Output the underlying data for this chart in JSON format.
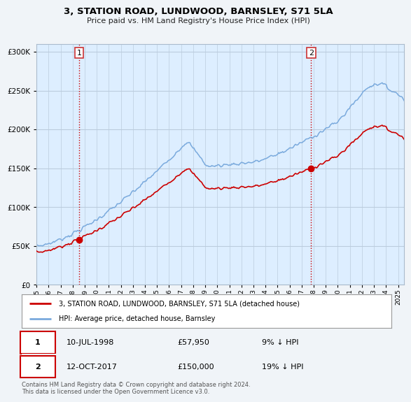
{
  "title": "3, STATION ROAD, LUNDWOOD, BARNSLEY, S71 5LA",
  "subtitle": "Price paid vs. HM Land Registry's House Price Index (HPI)",
  "ylim": [
    0,
    310000
  ],
  "yticks": [
    0,
    50000,
    100000,
    150000,
    200000,
    250000,
    300000
  ],
  "sale1_year": 1998.53,
  "sale1_value": 57950,
  "sale2_year": 2017.78,
  "sale2_value": 150000,
  "legend_line1": "3, STATION ROAD, LUNDWOOD, BARNSLEY, S71 5LA (detached house)",
  "legend_line2": "HPI: Average price, detached house, Barnsley",
  "sale1_date": "10-JUL-1998",
  "sale1_price": "£57,950",
  "sale1_hpi": "9% ↓ HPI",
  "sale2_date": "12-OCT-2017",
  "sale2_price": "£150,000",
  "sale2_hpi": "19% ↓ HPI",
  "footer": "Contains HM Land Registry data © Crown copyright and database right 2024.\nThis data is licensed under the Open Government Licence v3.0.",
  "line_color_red": "#cc0000",
  "line_color_blue": "#7aaadd",
  "background_color": "#f0f4f8",
  "plot_bg": "#ddeeff",
  "vline_color": "#cc0000",
  "grid_color": "#bbccdd"
}
